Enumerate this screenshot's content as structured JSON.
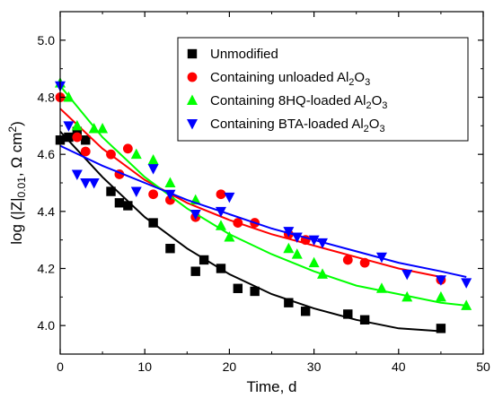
{
  "chart_data": {
    "type": "scatter",
    "xlabel": "Time, d",
    "ylabel": "log (|Z|0.01, Ω cm2)",
    "ylabel_parts": {
      "pre": "log (|Z|",
      "sub": "0.01",
      "mid": ", Ω cm",
      "sup": "2",
      "post": ")"
    },
    "xlim": [
      0,
      50
    ],
    "ylim": [
      3.9,
      5.1
    ],
    "xticks": [
      0,
      10,
      20,
      30,
      40,
      50
    ],
    "yticks": [
      4.0,
      4.2,
      4.4,
      4.6,
      4.8,
      5.0
    ],
    "grid": false,
    "legend_position": "top-right",
    "series": [
      {
        "name": "Unmodified",
        "legend_parts": {
          "pre": "Unmodified",
          "sub": "",
          "post": ""
        },
        "marker": "square",
        "color": "#000000",
        "points": [
          [
            0,
            4.65
          ],
          [
            1,
            4.66
          ],
          [
            2,
            4.68
          ],
          [
            3,
            4.65
          ],
          [
            6,
            4.47
          ],
          [
            7,
            4.43
          ],
          [
            8,
            4.42
          ],
          [
            11,
            4.36
          ],
          [
            13,
            4.27
          ],
          [
            16,
            4.19
          ],
          [
            17,
            4.23
          ],
          [
            19,
            4.2
          ],
          [
            21,
            4.13
          ],
          [
            23,
            4.12
          ],
          [
            27,
            4.08
          ],
          [
            29,
            4.05
          ],
          [
            34,
            4.04
          ],
          [
            36,
            4.02
          ],
          [
            45,
            3.99
          ]
        ],
        "fit": [
          [
            0,
            4.68
          ],
          [
            5,
            4.52
          ],
          [
            10,
            4.38
          ],
          [
            15,
            4.27
          ],
          [
            20,
            4.18
          ],
          [
            25,
            4.11
          ],
          [
            30,
            4.06
          ],
          [
            35,
            4.02
          ],
          [
            40,
            3.99
          ],
          [
            45,
            3.98
          ]
        ]
      },
      {
        "name": "Containing unloaded Al2O3",
        "legend_parts": {
          "pre": "Containing unloaded Al",
          "sub": "2",
          "post": "O3"
        },
        "marker": "circle",
        "color": "#ff0000",
        "points": [
          [
            0,
            4.8
          ],
          [
            2,
            4.66
          ],
          [
            3,
            4.61
          ],
          [
            6,
            4.6
          ],
          [
            7,
            4.53
          ],
          [
            8,
            4.62
          ],
          [
            11,
            4.46
          ],
          [
            13,
            4.44
          ],
          [
            16,
            4.38
          ],
          [
            19,
            4.46
          ],
          [
            21,
            4.36
          ],
          [
            23,
            4.36
          ],
          [
            27,
            4.32
          ],
          [
            29,
            4.3
          ],
          [
            34,
            4.23
          ],
          [
            36,
            4.22
          ],
          [
            45,
            4.16
          ]
        ],
        "fit": [
          [
            0,
            4.76
          ],
          [
            5,
            4.62
          ],
          [
            10,
            4.51
          ],
          [
            15,
            4.43
          ],
          [
            20,
            4.37
          ],
          [
            25,
            4.32
          ],
          [
            30,
            4.28
          ],
          [
            35,
            4.24
          ],
          [
            40,
            4.2
          ],
          [
            45,
            4.17
          ]
        ]
      },
      {
        "name": "Containing 8HQ-loaded Al2O3",
        "legend_parts": {
          "pre": "Containing 8HQ-loaded Al",
          "sub": "2",
          "post": "O3"
        },
        "marker": "triangle-up",
        "color": "#00ff00",
        "points": [
          [
            0,
            4.85
          ],
          [
            1,
            4.8
          ],
          [
            2,
            4.7
          ],
          [
            4,
            4.69
          ],
          [
            5,
            4.69
          ],
          [
            9,
            4.6
          ],
          [
            11,
            4.58
          ],
          [
            13,
            4.5
          ],
          [
            16,
            4.44
          ],
          [
            19,
            4.35
          ],
          [
            20,
            4.31
          ],
          [
            27,
            4.27
          ],
          [
            28,
            4.25
          ],
          [
            30,
            4.22
          ],
          [
            31,
            4.18
          ],
          [
            38,
            4.13
          ],
          [
            41,
            4.1
          ],
          [
            45,
            4.1
          ],
          [
            48,
            4.07
          ]
        ],
        "fit": [
          [
            0,
            4.84
          ],
          [
            5,
            4.66
          ],
          [
            10,
            4.52
          ],
          [
            15,
            4.41
          ],
          [
            20,
            4.32
          ],
          [
            25,
            4.25
          ],
          [
            30,
            4.19
          ],
          [
            35,
            4.14
          ],
          [
            40,
            4.11
          ],
          [
            45,
            4.08
          ],
          [
            48,
            4.07
          ]
        ]
      },
      {
        "name": "Containing BTA-loaded Al2O3",
        "legend_parts": {
          "pre": "Containing BTA-loaded Al",
          "sub": "2",
          "post": "O3"
        },
        "marker": "triangle-down",
        "color": "#0000ff",
        "points": [
          [
            0,
            4.84
          ],
          [
            1,
            4.7
          ],
          [
            2,
            4.53
          ],
          [
            3,
            4.5
          ],
          [
            4,
            4.5
          ],
          [
            9,
            4.47
          ],
          [
            11,
            4.55
          ],
          [
            13,
            4.46
          ],
          [
            16,
            4.39
          ],
          [
            19,
            4.4
          ],
          [
            20,
            4.45
          ],
          [
            27,
            4.33
          ],
          [
            28,
            4.31
          ],
          [
            30,
            4.3
          ],
          [
            31,
            4.29
          ],
          [
            38,
            4.24
          ],
          [
            41,
            4.18
          ],
          [
            45,
            4.16
          ],
          [
            48,
            4.15
          ]
        ],
        "fit": [
          [
            0,
            4.63
          ],
          [
            5,
            4.56
          ],
          [
            10,
            4.5
          ],
          [
            15,
            4.44
          ],
          [
            20,
            4.39
          ],
          [
            25,
            4.34
          ],
          [
            30,
            4.3
          ],
          [
            35,
            4.26
          ],
          [
            40,
            4.22
          ],
          [
            45,
            4.19
          ],
          [
            48,
            4.17
          ]
        ]
      }
    ]
  }
}
